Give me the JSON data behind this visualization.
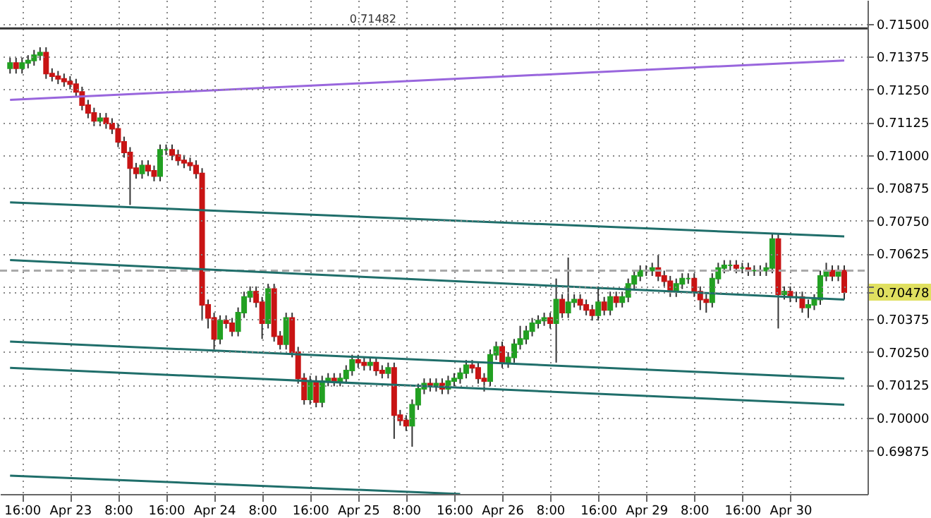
{
  "chart_data": {
    "type": "candlestick",
    "categories": [
      null,
      null,
      "16:00",
      null,
      null,
      null,
      null,
      null,
      null,
      null,
      "Apr 23",
      null,
      null,
      null,
      null,
      null,
      null,
      null,
      "8:00",
      null,
      null,
      null,
      null,
      null,
      null,
      null,
      "16:00",
      null,
      null,
      null,
      null,
      null,
      null,
      null,
      "Apr 24",
      null,
      null,
      null,
      null,
      null,
      null,
      null,
      "8:00",
      null,
      null,
      null,
      null,
      null,
      null,
      null,
      "16:00",
      null,
      null,
      null,
      null,
      null,
      null,
      null,
      "Apr 25",
      null,
      null,
      null,
      null,
      null,
      null,
      null,
      "8:00",
      null,
      null,
      null,
      null,
      null,
      null,
      null,
      "16:00",
      null,
      null,
      null,
      null,
      null,
      null,
      null,
      "Apr 26",
      null,
      null,
      null,
      null,
      null,
      null,
      null,
      "8:00",
      null,
      null,
      null,
      null,
      null,
      null,
      null,
      "16:00",
      null,
      null,
      null,
      null,
      null,
      null,
      null,
      "Apr 29",
      null,
      null,
      null,
      null,
      null,
      null,
      null,
      "8:00",
      null,
      null,
      null,
      null,
      null,
      null,
      null,
      "16:00",
      null,
      null,
      null,
      null,
      null,
      null,
      null,
      "Apr 30",
      null,
      null,
      null,
      null,
      null,
      null,
      null,
      null,
      null
    ],
    "ohlc": [
      [
        0.7133,
        0.7137,
        0.7131,
        0.7135
      ],
      [
        0.7135,
        0.7137,
        0.7131,
        0.7133
      ],
      [
        0.7133,
        0.7137,
        0.7131,
        0.7135
      ],
      [
        0.7135,
        0.7138,
        0.7133,
        0.7136
      ],
      [
        0.7136,
        0.714,
        0.7134,
        0.7138
      ],
      [
        0.7138,
        0.7141,
        0.7136,
        0.7139
      ],
      [
        0.7139,
        0.7141,
        0.7129,
        0.7131
      ],
      [
        0.7131,
        0.7133,
        0.7128,
        0.713
      ],
      [
        0.713,
        0.7132,
        0.7127,
        0.7129
      ],
      [
        0.7129,
        0.7131,
        0.7126,
        0.7128
      ],
      [
        0.7128,
        0.713,
        0.7125,
        0.7127
      ],
      [
        0.7127,
        0.7129,
        0.7122,
        0.7124
      ],
      [
        0.7124,
        0.7126,
        0.7117,
        0.7119
      ],
      [
        0.7119,
        0.7121,
        0.7114,
        0.7116
      ],
      [
        0.7116,
        0.7118,
        0.7111,
        0.7113
      ],
      [
        0.7113,
        0.7116,
        0.7111,
        0.7114
      ],
      [
        0.7114,
        0.7116,
        0.711,
        0.7112
      ],
      [
        0.7112,
        0.7114,
        0.7108,
        0.711
      ],
      [
        0.711,
        0.7112,
        0.7103,
        0.7105
      ],
      [
        0.7105,
        0.7107,
        0.7099,
        0.7101
      ],
      [
        0.7101,
        0.7103,
        0.7081,
        0.7095
      ],
      [
        0.7095,
        0.7097,
        0.7091,
        0.7093
      ],
      [
        0.7093,
        0.7098,
        0.7091,
        0.7096
      ],
      [
        0.7096,
        0.7098,
        0.7092,
        0.7094
      ],
      [
        0.7094,
        0.7096,
        0.709,
        0.7092
      ],
      [
        0.7092,
        0.7104,
        0.709,
        0.7102
      ],
      [
        0.7102,
        0.7104,
        0.71,
        0.7102
      ],
      [
        0.7102,
        0.7104,
        0.7098,
        0.71
      ],
      [
        0.71,
        0.7102,
        0.7096,
        0.7098
      ],
      [
        0.7098,
        0.71,
        0.7095,
        0.7097
      ],
      [
        0.7097,
        0.7099,
        0.7094,
        0.7096
      ],
      [
        0.7096,
        0.7098,
        0.7091,
        0.7093
      ],
      [
        0.7093,
        0.7095,
        0.7037,
        0.7043
      ],
      [
        0.7043,
        0.7045,
        0.7034,
        0.7038
      ],
      [
        0.7038,
        0.704,
        0.7026,
        0.703
      ],
      [
        0.703,
        0.7039,
        0.7028,
        0.7037
      ],
      [
        0.7037,
        0.7039,
        0.7034,
        0.7036
      ],
      [
        0.7036,
        0.7038,
        0.7031,
        0.7033
      ],
      [
        0.7033,
        0.7042,
        0.7031,
        0.704
      ],
      [
        0.704,
        0.7048,
        0.7038,
        0.7046
      ],
      [
        0.7046,
        0.705,
        0.7044,
        0.7048
      ],
      [
        0.7048,
        0.705,
        0.7042,
        0.7044
      ],
      [
        0.7044,
        0.7046,
        0.703,
        0.7036
      ],
      [
        0.7036,
        0.7051,
        0.7034,
        0.7049
      ],
      [
        0.7049,
        0.7051,
        0.7029,
        0.7031
      ],
      [
        0.7031,
        0.7033,
        0.7026,
        0.7028
      ],
      [
        0.7028,
        0.704,
        0.7026,
        0.7038
      ],
      [
        0.7038,
        0.704,
        0.7023,
        0.7025
      ],
      [
        0.7025,
        0.7027,
        0.7013,
        0.7015
      ],
      [
        0.7015,
        0.7017,
        0.7005,
        0.7007
      ],
      [
        0.7007,
        0.7016,
        0.7005,
        0.7014
      ],
      [
        0.7014,
        0.7016,
        0.7004,
        0.7006
      ],
      [
        0.7006,
        0.7016,
        0.7004,
        0.7014
      ],
      [
        0.7014,
        0.7017,
        0.7012,
        0.7015
      ],
      [
        0.7015,
        0.7017,
        0.7012,
        0.7014
      ],
      [
        0.7014,
        0.7017,
        0.7012,
        0.7015
      ],
      [
        0.7015,
        0.702,
        0.7013,
        0.7018
      ],
      [
        0.7018,
        0.7024,
        0.7016,
        0.7022
      ],
      [
        0.7022,
        0.7024,
        0.7019,
        0.7021
      ],
      [
        0.7021,
        0.7023,
        0.7018,
        0.702
      ],
      [
        0.702,
        0.7023,
        0.7018,
        0.7021
      ],
      [
        0.7021,
        0.7023,
        0.7016,
        0.7018
      ],
      [
        0.7018,
        0.702,
        0.7015,
        0.7017
      ],
      [
        0.7017,
        0.7021,
        0.7015,
        0.7019
      ],
      [
        0.7019,
        0.7021,
        0.6992,
        0.7001
      ],
      [
        0.7001,
        0.7003,
        0.6997,
        0.6999
      ],
      [
        0.6999,
        0.7001,
        0.6995,
        0.6997
      ],
      [
        0.6997,
        0.7007,
        0.6989,
        0.7005
      ],
      [
        0.7005,
        0.7013,
        0.7003,
        0.7011
      ],
      [
        0.7011,
        0.7015,
        0.7009,
        0.7013
      ],
      [
        0.7013,
        0.7015,
        0.701,
        0.7012
      ],
      [
        0.7012,
        0.7015,
        0.701,
        0.7013
      ],
      [
        0.7013,
        0.7015,
        0.7009,
        0.7011
      ],
      [
        0.7011,
        0.7016,
        0.7009,
        0.7014
      ],
      [
        0.7014,
        0.7017,
        0.7012,
        0.7015
      ],
      [
        0.7015,
        0.7019,
        0.7013,
        0.7017
      ],
      [
        0.7017,
        0.7022,
        0.7015,
        0.702
      ],
      [
        0.702,
        0.7022,
        0.7017,
        0.7019
      ],
      [
        0.7019,
        0.7021,
        0.7013,
        0.7015
      ],
      [
        0.7015,
        0.7017,
        0.701,
        0.7014
      ],
      [
        0.7014,
        0.7026,
        0.7012,
        0.7024
      ],
      [
        0.7024,
        0.7029,
        0.7022,
        0.7027
      ],
      [
        0.7027,
        0.7029,
        0.7019,
        0.7021
      ],
      [
        0.7021,
        0.7025,
        0.7019,
        0.7023
      ],
      [
        0.7023,
        0.703,
        0.7021,
        0.7028
      ],
      [
        0.7028,
        0.7035,
        0.7026,
        0.703
      ],
      [
        0.703,
        0.7035,
        0.7028,
        0.7033
      ],
      [
        0.7033,
        0.7038,
        0.7031,
        0.7036
      ],
      [
        0.7036,
        0.7039,
        0.7034,
        0.7037
      ],
      [
        0.7037,
        0.704,
        0.7035,
        0.7038
      ],
      [
        0.7038,
        0.704,
        0.7034,
        0.7036
      ],
      [
        0.7036,
        0.7053,
        0.7021,
        0.7045
      ],
      [
        0.7045,
        0.7047,
        0.7038,
        0.704
      ],
      [
        0.704,
        0.7061,
        0.7038,
        0.7044
      ],
      [
        0.7044,
        0.7047,
        0.7042,
        0.7045
      ],
      [
        0.7045,
        0.7047,
        0.7041,
        0.7043
      ],
      [
        0.7043,
        0.7045,
        0.7039,
        0.7041
      ],
      [
        0.7041,
        0.7043,
        0.7037,
        0.7039
      ],
      [
        0.7039,
        0.705,
        0.7037,
        0.7044
      ],
      [
        0.7044,
        0.7046,
        0.7039,
        0.7041
      ],
      [
        0.7041,
        0.7048,
        0.7039,
        0.7046
      ],
      [
        0.7046,
        0.7048,
        0.7042,
        0.7044
      ],
      [
        0.7044,
        0.7048,
        0.7042,
        0.7046
      ],
      [
        0.7046,
        0.7053,
        0.7044,
        0.7051
      ],
      [
        0.7051,
        0.7056,
        0.7049,
        0.7054
      ],
      [
        0.7054,
        0.7058,
        0.7052,
        0.7056
      ],
      [
        0.7056,
        0.7058,
        0.7054,
        0.7056
      ],
      [
        0.7056,
        0.7059,
        0.7054,
        0.7057
      ],
      [
        0.7057,
        0.7062,
        0.7052,
        0.7054
      ],
      [
        0.7054,
        0.7056,
        0.705,
        0.7052
      ],
      [
        0.7052,
        0.7054,
        0.7046,
        0.7048
      ],
      [
        0.7048,
        0.7053,
        0.7046,
        0.7051
      ],
      [
        0.7051,
        0.7055,
        0.7049,
        0.7053
      ],
      [
        0.7053,
        0.7055,
        0.7051,
        0.7053
      ],
      [
        0.7053,
        0.7055,
        0.7046,
        0.7048
      ],
      [
        0.7048,
        0.705,
        0.7041,
        0.7045
      ],
      [
        0.7045,
        0.7047,
        0.704,
        0.7044
      ],
      [
        0.7044,
        0.7055,
        0.7042,
        0.7053
      ],
      [
        0.7053,
        0.7059,
        0.7051,
        0.7057
      ],
      [
        0.7057,
        0.706,
        0.7055,
        0.7058
      ],
      [
        0.7058,
        0.706,
        0.7056,
        0.7058
      ],
      [
        0.7058,
        0.706,
        0.7055,
        0.7057
      ],
      [
        0.7057,
        0.7059,
        0.7055,
        0.7057
      ],
      [
        0.7057,
        0.7059,
        0.7054,
        0.7056
      ],
      [
        0.7056,
        0.7058,
        0.7054,
        0.7056
      ],
      [
        0.7056,
        0.7058,
        0.7054,
        0.7056
      ],
      [
        0.7056,
        0.7059,
        0.7054,
        0.7057
      ],
      [
        0.7057,
        0.707,
        0.7055,
        0.7068
      ],
      [
        0.7068,
        0.707,
        0.7034,
        0.7047
      ],
      [
        0.7047,
        0.705,
        0.7045,
        0.7048
      ],
      [
        0.7048,
        0.705,
        0.7044,
        0.7046
      ],
      [
        0.7046,
        0.7048,
        0.7044,
        0.7046
      ],
      [
        0.7046,
        0.7048,
        0.704,
        0.7042
      ],
      [
        0.7042,
        0.7045,
        0.7038,
        0.7043
      ],
      [
        0.7043,
        0.7047,
        0.7041,
        0.7045
      ],
      [
        0.7045,
        0.7056,
        0.7043,
        0.7054
      ],
      [
        0.7054,
        0.7059,
        0.7052,
        0.7056
      ],
      [
        0.7056,
        0.7058,
        0.7052,
        0.7054
      ],
      [
        0.7054,
        0.7058,
        0.7052,
        0.7056
      ],
      [
        0.7056,
        0.7058,
        0.7045,
        0.70478
      ]
    ],
    "series": [
      {
        "type": "line",
        "color": "#9966dd",
        "line_style": "solid",
        "values": [
          0.7121,
          null,
          null,
          null,
          null,
          null,
          null,
          null,
          null,
          null,
          null,
          null,
          null,
          null,
          null,
          null,
          null,
          null,
          null,
          null,
          null,
          null,
          null,
          null,
          null,
          null,
          null,
          null,
          null,
          null,
          null,
          null,
          null,
          null,
          null,
          null,
          null,
          null,
          null,
          null,
          null,
          null,
          null,
          null,
          null,
          null,
          null,
          null,
          null,
          null,
          null,
          null,
          null,
          null,
          null,
          null,
          null,
          null,
          null,
          null,
          null,
          null,
          null,
          null,
          null,
          null,
          null,
          null,
          null,
          null,
          null,
          null,
          null,
          null,
          null,
          null,
          null,
          null,
          null,
          null,
          null,
          null,
          null,
          null,
          null,
          null,
          null,
          null,
          null,
          null,
          null,
          null,
          null,
          null,
          null,
          null,
          null,
          null,
          null,
          null,
          null,
          null,
          null,
          null,
          null,
          null,
          null,
          null,
          null,
          null,
          null,
          null,
          null,
          null,
          null,
          null,
          null,
          null,
          null,
          null,
          null,
          null,
          null,
          null,
          null,
          null,
          null,
          null,
          null,
          null,
          null,
          null,
          null,
          null,
          null,
          null,
          null,
          null,
          null,
          0.7136
        ]
      },
      {
        "type": "line",
        "color": "#1f6e6a",
        "line_style": "solid",
        "values": [
          0.7082,
          null,
          null,
          null,
          null,
          null,
          null,
          null,
          null,
          null,
          null,
          null,
          null,
          null,
          null,
          null,
          null,
          null,
          null,
          null,
          null,
          null,
          null,
          null,
          null,
          null,
          null,
          null,
          null,
          null,
          null,
          null,
          null,
          null,
          null,
          null,
          null,
          null,
          null,
          null,
          null,
          null,
          null,
          null,
          null,
          null,
          null,
          null,
          null,
          null,
          null,
          null,
          null,
          null,
          null,
          null,
          null,
          null,
          null,
          null,
          null,
          null,
          null,
          null,
          null,
          null,
          null,
          null,
          null,
          null,
          null,
          null,
          null,
          null,
          null,
          null,
          null,
          null,
          null,
          null,
          null,
          null,
          null,
          null,
          null,
          null,
          null,
          null,
          null,
          null,
          null,
          null,
          null,
          null,
          null,
          null,
          null,
          null,
          null,
          null,
          null,
          null,
          null,
          null,
          null,
          null,
          null,
          null,
          null,
          null,
          null,
          null,
          null,
          null,
          null,
          null,
          null,
          null,
          null,
          null,
          null,
          null,
          null,
          null,
          null,
          null,
          null,
          null,
          null,
          null,
          null,
          null,
          null,
          null,
          null,
          null,
          null,
          null,
          null,
          0.7069
        ]
      },
      {
        "type": "line",
        "color": "#1f6e6a",
        "line_style": "solid",
        "values": [
          0.706,
          null,
          null,
          null,
          null,
          null,
          null,
          null,
          null,
          null,
          null,
          null,
          null,
          null,
          null,
          null,
          null,
          null,
          null,
          null,
          null,
          null,
          null,
          null,
          null,
          null,
          null,
          null,
          null,
          null,
          null,
          null,
          null,
          null,
          null,
          null,
          null,
          null,
          null,
          null,
          null,
          null,
          null,
          null,
          null,
          null,
          null,
          null,
          null,
          null,
          null,
          null,
          null,
          null,
          null,
          null,
          null,
          null,
          null,
          null,
          null,
          null,
          null,
          null,
          null,
          null,
          null,
          null,
          null,
          null,
          null,
          null,
          null,
          null,
          null,
          null,
          null,
          null,
          null,
          null,
          null,
          null,
          null,
          null,
          null,
          null,
          null,
          null,
          null,
          null,
          null,
          null,
          null,
          null,
          null,
          null,
          null,
          null,
          null,
          null,
          null,
          null,
          null,
          null,
          null,
          null,
          null,
          null,
          null,
          null,
          null,
          null,
          null,
          null,
          null,
          null,
          null,
          null,
          null,
          null,
          null,
          null,
          null,
          null,
          null,
          null,
          null,
          null,
          null,
          null,
          null,
          null,
          null,
          null,
          null,
          null,
          null,
          null,
          null,
          0.7045
        ]
      },
      {
        "type": "line",
        "color": "#1f6e6a",
        "line_style": "solid",
        "values": [
          0.7029,
          null,
          null,
          null,
          null,
          null,
          null,
          null,
          null,
          null,
          null,
          null,
          null,
          null,
          null,
          null,
          null,
          null,
          null,
          null,
          null,
          null,
          null,
          null,
          null,
          null,
          null,
          null,
          null,
          null,
          null,
          null,
          null,
          null,
          null,
          null,
          null,
          null,
          null,
          null,
          null,
          null,
          null,
          null,
          null,
          null,
          null,
          null,
          null,
          null,
          null,
          null,
          null,
          null,
          null,
          null,
          null,
          null,
          null,
          null,
          null,
          null,
          null,
          null,
          null,
          null,
          null,
          null,
          null,
          null,
          null,
          null,
          null,
          null,
          null,
          null,
          null,
          null,
          null,
          null,
          null,
          null,
          null,
          null,
          null,
          null,
          null,
          null,
          null,
          null,
          null,
          null,
          null,
          null,
          null,
          null,
          null,
          null,
          null,
          null,
          null,
          null,
          null,
          null,
          null,
          null,
          null,
          null,
          null,
          null,
          null,
          null,
          null,
          null,
          null,
          null,
          null,
          null,
          null,
          null,
          null,
          null,
          null,
          null,
          null,
          null,
          null,
          null,
          null,
          null,
          null,
          null,
          null,
          null,
          null,
          null,
          null,
          null,
          null,
          0.7015
        ]
      },
      {
        "type": "line",
        "color": "#1f6e6a",
        "line_style": "solid",
        "values": [
          0.7019,
          null,
          null,
          null,
          null,
          null,
          null,
          null,
          null,
          null,
          null,
          null,
          null,
          null,
          null,
          null,
          null,
          null,
          null,
          null,
          null,
          null,
          null,
          null,
          null,
          null,
          null,
          null,
          null,
          null,
          null,
          null,
          null,
          null,
          null,
          null,
          null,
          null,
          null,
          null,
          null,
          null,
          null,
          null,
          null,
          null,
          null,
          null,
          null,
          null,
          null,
          null,
          null,
          null,
          null,
          null,
          null,
          null,
          null,
          null,
          null,
          null,
          null,
          null,
          null,
          null,
          null,
          null,
          null,
          null,
          null,
          null,
          null,
          null,
          null,
          null,
          null,
          null,
          null,
          null,
          null,
          null,
          null,
          null,
          null,
          null,
          null,
          null,
          null,
          null,
          null,
          null,
          null,
          null,
          null,
          null,
          null,
          null,
          null,
          null,
          null,
          null,
          null,
          null,
          null,
          null,
          null,
          null,
          null,
          null,
          null,
          null,
          null,
          null,
          null,
          null,
          null,
          null,
          null,
          null,
          null,
          null,
          null,
          null,
          null,
          null,
          null,
          null,
          null,
          null,
          null,
          null,
          null,
          null,
          null,
          null,
          null,
          null,
          null,
          0.7005
        ]
      },
      {
        "type": "line",
        "color": "#1f6e6a",
        "line_style": "solid",
        "values": [
          0.6978,
          null,
          null,
          null,
          null,
          null,
          null,
          null,
          null,
          null,
          null,
          null,
          null,
          null,
          null,
          null,
          null,
          null,
          null,
          null,
          null,
          null,
          null,
          null,
          null,
          null,
          null,
          null,
          null,
          null,
          null,
          null,
          null,
          null,
          null,
          null,
          null,
          null,
          null,
          null,
          null,
          null,
          null,
          null,
          null,
          null,
          null,
          null,
          null,
          null,
          null,
          null,
          null,
          null,
          null,
          null,
          null,
          null,
          null,
          null,
          null,
          null,
          null,
          null,
          null,
          null,
          null,
          null,
          null,
          null,
          null,
          null,
          null,
          null,
          null,
          0.6971,
          null,
          null,
          null,
          null,
          null,
          null,
          null,
          null,
          null,
          null,
          null,
          null,
          null,
          null,
          null,
          null,
          null,
          null,
          null,
          null,
          null,
          null,
          null,
          null,
          null,
          null,
          null,
          null,
          null,
          null,
          null,
          null,
          null,
          null,
          null,
          null,
          null,
          null,
          null,
          null,
          null,
          null,
          null,
          null,
          null,
          null,
          null,
          null,
          null,
          null,
          null,
          null,
          null,
          null,
          null,
          null,
          null,
          null,
          null,
          null,
          null,
          null,
          null,
          null
        ]
      }
    ],
    "ylim": [
      0.6971,
      0.7159
    ],
    "yticks": [
      {
        "value": 0.69875,
        "label": "0.69875"
      },
      {
        "value": 0.7,
        "label": "0.70000"
      },
      {
        "value": 0.70125,
        "label": "0.70125"
      },
      {
        "value": 0.7025,
        "label": "0.70250"
      },
      {
        "value": 0.70375,
        "label": "0.70375"
      },
      {
        "value": 0.70478,
        "label": "0.70478"
      },
      {
        "value": 0.705,
        "label": null
      },
      {
        "value": 0.70625,
        "label": "0.70625"
      },
      {
        "value": 0.7075,
        "label": "0.70750"
      },
      {
        "value": 0.70875,
        "label": "0.70875"
      },
      {
        "value": 0.71,
        "label": "0.71000"
      },
      {
        "value": 0.71125,
        "label": "0.71125"
      },
      {
        "value": 0.7125,
        "label": "0.71250"
      },
      {
        "value": 0.71375,
        "label": "0.71375"
      },
      {
        "value": 0.715,
        "label": "0.71500"
      }
    ],
    "ref_lines": [
      {
        "axis": "y",
        "value": 0.71482,
        "label": "0.71482",
        "color": "#333333",
        "line_style": "solid"
      },
      {
        "axis": "y",
        "value": 0.7056,
        "color": "#aaaaaa",
        "line_style": "dashed"
      }
    ],
    "grid": true
  }
}
